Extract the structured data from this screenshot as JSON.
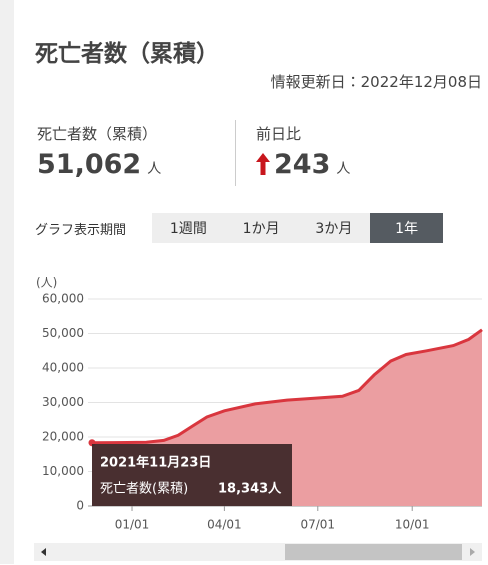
{
  "header": {
    "title": "死亡者数（累積）",
    "updated": "情報更新日：2022年12月08日"
  },
  "stats": [
    {
      "label": "死亡者数（累積）",
      "value": "51,062",
      "unit": "人"
    },
    {
      "label": "前日比",
      "value": "243",
      "unit": "人"
    }
  ],
  "period": {
    "label": "グラフ表示期間",
    "options": [
      "1週間",
      "1か月",
      "3か月",
      "1年"
    ],
    "selected": 3
  },
  "chart_data": {
    "type": "area",
    "y_label": "(人)",
    "x": [
      "2021-11-23",
      "2021-12-15",
      "2022-01-15",
      "2022-02-01",
      "2022-02-15",
      "2022-03-01",
      "2022-03-15",
      "2022-04-01",
      "2022-05-01",
      "2022-06-01",
      "2022-07-01",
      "2022-07-25",
      "2022-08-10",
      "2022-08-25",
      "2022-09-10",
      "2022-09-25",
      "2022-10-15",
      "2022-11-10",
      "2022-11-25",
      "2022-12-08"
    ],
    "values": [
      18343,
      18390,
      18450,
      19000,
      20500,
      23200,
      25800,
      27600,
      29600,
      30700,
      31300,
      31800,
      33500,
      38000,
      42000,
      43900,
      45000,
      46500,
      48300,
      51062
    ],
    "color": "#d9363e",
    "fill": "#eb9ea1",
    "xlim": [
      "2021-11-23",
      "2022-12-08"
    ],
    "xticks": [
      {
        "value": "2022-01-01",
        "label": "01/01"
      },
      {
        "value": "2022-04-01",
        "label": "04/01"
      },
      {
        "value": "2022-07-01",
        "label": "07/01"
      },
      {
        "value": "2022-10-01",
        "label": "10/01"
      }
    ],
    "ylim": [
      0,
      60000
    ],
    "yticks": [
      0,
      {
        "value": 10000,
        "label": "10,000"
      },
      {
        "value": 20000,
        "label": "20,000"
      },
      {
        "value": 30000,
        "label": "30,000"
      },
      {
        "value": 40000,
        "label": "40,000"
      },
      {
        "value": 50000,
        "label": "50,000"
      },
      {
        "value": 60000,
        "label": "60,000"
      }
    ],
    "grid": true,
    "tooltip": {
      "title": "2021年11月23日",
      "text": "死亡者数(累積)",
      "value": "18,343人"
    }
  }
}
